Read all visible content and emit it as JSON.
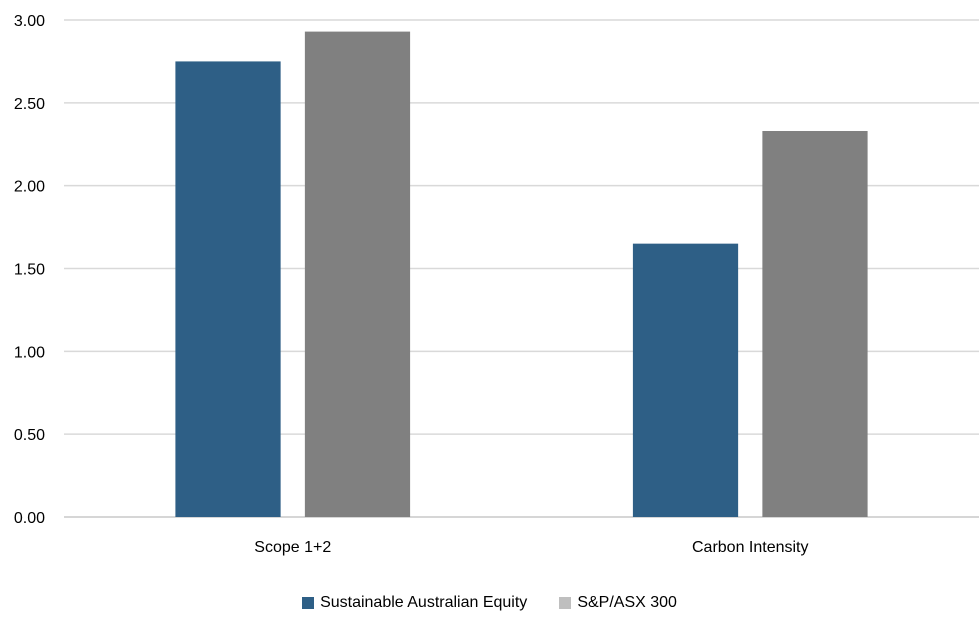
{
  "chart_data": {
    "type": "bar",
    "title": "",
    "xlabel": "",
    "ylabel": "",
    "categories": [
      "Scope 1+2",
      "Carbon Intensity"
    ],
    "series": [
      {
        "name": "Sustainable Australian Equity",
        "values": [
          2.75,
          1.65
        ],
        "color": "#2e5f86"
      },
      {
        "name": "S&P/ASX 300",
        "values": [
          2.93,
          2.33
        ],
        "color": "#808080"
      }
    ],
    "ylim": [
      0,
      3
    ],
    "yticks": [
      "0.00",
      "0.50",
      "1.00",
      "1.50",
      "2.00",
      "2.50",
      "3.00"
    ],
    "grid": true,
    "legend_position": "bottom-center",
    "legend_swatch_colors": [
      "#2e5f86",
      "#bfbfbf"
    ]
  }
}
